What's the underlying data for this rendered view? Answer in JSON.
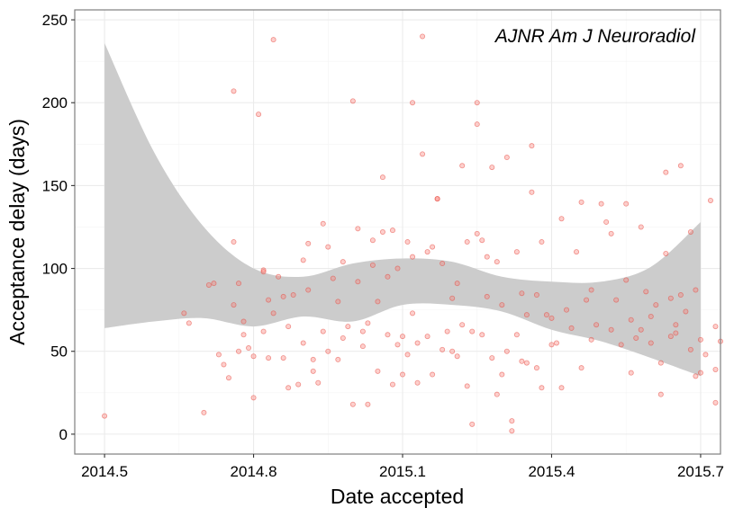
{
  "chart_data": {
    "type": "scatter",
    "title": "",
    "annotation": "AJNR Am J Neuroradiol",
    "xlabel": "Date accepted",
    "ylabel": "Acceptance delay (days)",
    "xlim": [
      2014.44,
      2015.74
    ],
    "ylim": [
      -12,
      256
    ],
    "x_ticks": [
      2014.5,
      2014.8,
      2015.1,
      2015.4,
      2015.7
    ],
    "x_tick_labels": [
      "2014.5",
      "2014.8",
      "2015.1",
      "2015.4",
      "2015.7"
    ],
    "y_ticks": [
      0,
      50,
      100,
      150,
      200,
      250
    ],
    "y_tick_labels": [
      "0",
      "50",
      "100",
      "150",
      "200",
      "250"
    ],
    "grid": true,
    "point_color": "#F8766D",
    "band_color": "#cccccc",
    "series": [
      {
        "type": "scatter",
        "points": [
          [
            2014.5,
            11
          ],
          [
            2014.66,
            73
          ],
          [
            2014.67,
            67
          ],
          [
            2014.7,
            13
          ],
          [
            2014.71,
            90
          ],
          [
            2014.72,
            91
          ],
          [
            2014.73,
            48
          ],
          [
            2014.74,
            42
          ],
          [
            2014.75,
            34
          ],
          [
            2014.76,
            78
          ],
          [
            2014.76,
            116
          ],
          [
            2014.76,
            207
          ],
          [
            2014.77,
            50
          ],
          [
            2014.77,
            91
          ],
          [
            2014.78,
            68
          ],
          [
            2014.78,
            60
          ],
          [
            2014.79,
            52
          ],
          [
            2014.8,
            47
          ],
          [
            2014.8,
            22
          ],
          [
            2014.81,
            193
          ],
          [
            2014.82,
            62
          ],
          [
            2014.82,
            99
          ],
          [
            2014.82,
            98
          ],
          [
            2014.83,
            46
          ],
          [
            2014.83,
            81
          ],
          [
            2014.84,
            238
          ],
          [
            2014.84,
            73
          ],
          [
            2014.85,
            95
          ],
          [
            2014.86,
            46
          ],
          [
            2014.86,
            83
          ],
          [
            2014.87,
            65
          ],
          [
            2014.87,
            28
          ],
          [
            2014.88,
            84
          ],
          [
            2014.89,
            30
          ],
          [
            2014.9,
            55
          ],
          [
            2014.9,
            105
          ],
          [
            2014.91,
            115
          ],
          [
            2014.91,
            87
          ],
          [
            2014.92,
            45
          ],
          [
            2014.92,
            38
          ],
          [
            2014.93,
            31
          ],
          [
            2014.94,
            127
          ],
          [
            2014.94,
            62
          ],
          [
            2014.95,
            113
          ],
          [
            2014.95,
            50
          ],
          [
            2014.96,
            94
          ],
          [
            2014.97,
            45
          ],
          [
            2014.97,
            80
          ],
          [
            2014.98,
            104
          ],
          [
            2014.98,
            58
          ],
          [
            2014.99,
            65
          ],
          [
            2015.0,
            18
          ],
          [
            2015.0,
            201
          ],
          [
            2015.01,
            124
          ],
          [
            2015.01,
            92
          ],
          [
            2015.02,
            53
          ],
          [
            2015.02,
            62
          ],
          [
            2015.03,
            67
          ],
          [
            2015.03,
            18
          ],
          [
            2015.04,
            117
          ],
          [
            2015.04,
            102
          ],
          [
            2015.05,
            80
          ],
          [
            2015.05,
            38
          ],
          [
            2015.06,
            155
          ],
          [
            2015.06,
            122
          ],
          [
            2015.07,
            95
          ],
          [
            2015.07,
            60
          ],
          [
            2015.08,
            123
          ],
          [
            2015.08,
            30
          ],
          [
            2015.09,
            100
          ],
          [
            2015.09,
            54
          ],
          [
            2015.1,
            36
          ],
          [
            2015.1,
            59
          ],
          [
            2015.11,
            48
          ],
          [
            2015.11,
            116
          ],
          [
            2015.12,
            200
          ],
          [
            2015.12,
            107
          ],
          [
            2015.12,
            73
          ],
          [
            2015.13,
            31
          ],
          [
            2015.13,
            55
          ],
          [
            2015.14,
            169
          ],
          [
            2015.14,
            240
          ],
          [
            2015.15,
            110
          ],
          [
            2015.15,
            59
          ],
          [
            2015.16,
            113
          ],
          [
            2015.16,
            36
          ],
          [
            2015.17,
            142
          ],
          [
            2015.17,
            142
          ],
          [
            2015.18,
            103
          ],
          [
            2015.18,
            51
          ],
          [
            2015.19,
            62
          ],
          [
            2015.2,
            82
          ],
          [
            2015.2,
            50
          ],
          [
            2015.21,
            91
          ],
          [
            2015.21,
            47
          ],
          [
            2015.22,
            162
          ],
          [
            2015.22,
            66
          ],
          [
            2015.23,
            29
          ],
          [
            2015.23,
            116
          ],
          [
            2015.24,
            62
          ],
          [
            2015.24,
            6
          ],
          [
            2015.25,
            200
          ],
          [
            2015.25,
            187
          ],
          [
            2015.25,
            121
          ],
          [
            2015.26,
            117
          ],
          [
            2015.26,
            60
          ],
          [
            2015.27,
            107
          ],
          [
            2015.27,
            83
          ],
          [
            2015.28,
            161
          ],
          [
            2015.28,
            46
          ],
          [
            2015.29,
            104
          ],
          [
            2015.29,
            24
          ],
          [
            2015.3,
            78
          ],
          [
            2015.3,
            36
          ],
          [
            2015.31,
            167
          ],
          [
            2015.31,
            50
          ],
          [
            2015.32,
            2
          ],
          [
            2015.32,
            8
          ],
          [
            2015.33,
            60
          ],
          [
            2015.33,
            110
          ],
          [
            2015.34,
            44
          ],
          [
            2015.34,
            85
          ],
          [
            2015.35,
            43
          ],
          [
            2015.35,
            72
          ],
          [
            2015.36,
            146
          ],
          [
            2015.36,
            174
          ],
          [
            2015.37,
            40
          ],
          [
            2015.37,
            84
          ],
          [
            2015.38,
            28
          ],
          [
            2015.38,
            116
          ],
          [
            2015.39,
            72
          ],
          [
            2015.4,
            70
          ],
          [
            2015.4,
            54
          ],
          [
            2015.41,
            55
          ],
          [
            2015.42,
            28
          ],
          [
            2015.42,
            130
          ],
          [
            2015.43,
            75
          ],
          [
            2015.44,
            64
          ],
          [
            2015.45,
            110
          ],
          [
            2015.46,
            40
          ],
          [
            2015.46,
            140
          ],
          [
            2015.47,
            81
          ],
          [
            2015.48,
            87
          ],
          [
            2015.48,
            57
          ],
          [
            2015.49,
            66
          ],
          [
            2015.5,
            139
          ],
          [
            2015.51,
            128
          ],
          [
            2015.52,
            121
          ],
          [
            2015.52,
            63
          ],
          [
            2015.53,
            81
          ],
          [
            2015.54,
            54
          ],
          [
            2015.55,
            139
          ],
          [
            2015.55,
            93
          ],
          [
            2015.56,
            37
          ],
          [
            2015.56,
            69
          ],
          [
            2015.57,
            58
          ],
          [
            2015.58,
            63
          ],
          [
            2015.58,
            125
          ],
          [
            2015.59,
            86
          ],
          [
            2015.6,
            55
          ],
          [
            2015.6,
            71
          ],
          [
            2015.61,
            78
          ],
          [
            2015.62,
            43
          ],
          [
            2015.62,
            24
          ],
          [
            2015.63,
            109
          ],
          [
            2015.63,
            158
          ],
          [
            2015.64,
            59
          ],
          [
            2015.64,
            82
          ],
          [
            2015.65,
            66
          ],
          [
            2015.65,
            61
          ],
          [
            2015.66,
            162
          ],
          [
            2015.66,
            84
          ],
          [
            2015.67,
            74
          ],
          [
            2015.68,
            122
          ],
          [
            2015.68,
            51
          ],
          [
            2015.69,
            87
          ],
          [
            2015.69,
            35
          ],
          [
            2015.7,
            57
          ],
          [
            2015.7,
            37
          ],
          [
            2015.71,
            48
          ],
          [
            2015.72,
            141
          ],
          [
            2015.73,
            19
          ],
          [
            2015.73,
            39
          ],
          [
            2015.73,
            65
          ],
          [
            2015.74,
            56
          ]
        ]
      }
    ],
    "smooth_band": {
      "type": "area",
      "x": [
        2014.5,
        2014.6,
        2014.7,
        2014.8,
        2014.9,
        2015.0,
        2015.1,
        2015.2,
        2015.3,
        2015.4,
        2015.5,
        2015.6,
        2015.7
      ],
      "upper": [
        236,
        170,
        125,
        100,
        95,
        103,
        106,
        104,
        95,
        92,
        92,
        101,
        128
      ],
      "lower": [
        64,
        68,
        70,
        65,
        71,
        68,
        78,
        78,
        74,
        63,
        56,
        46,
        35
      ]
    }
  }
}
